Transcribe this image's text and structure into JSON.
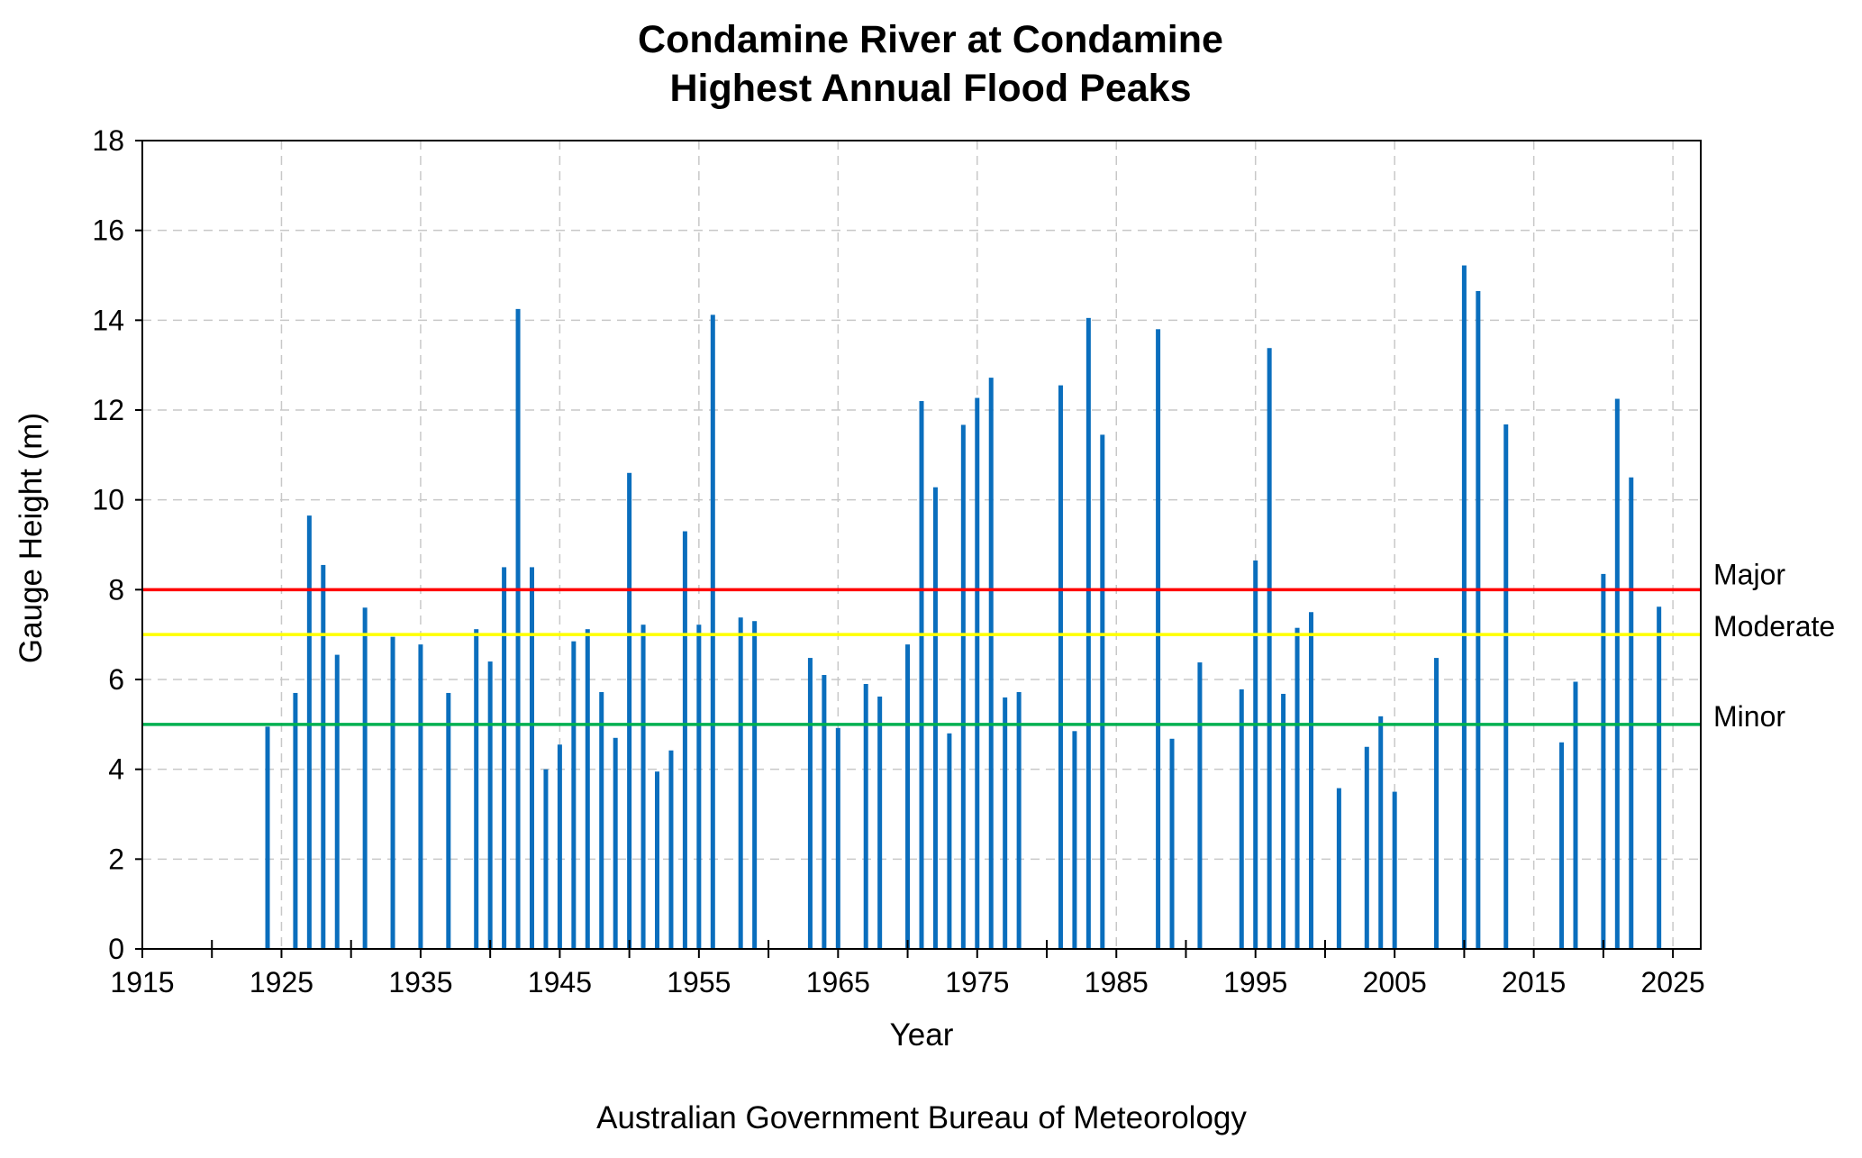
{
  "chart_data": {
    "type": "bar",
    "title": "Condamine River at Condamine",
    "subtitle": "Highest Annual Flood Peaks",
    "xlabel": "Year",
    "ylabel": "Gauge Height (m)",
    "xlim": [
      1915,
      2027
    ],
    "ylim": [
      0,
      18
    ],
    "x_ticks": [
      "1915",
      "1925",
      "1935",
      "1945",
      "1955",
      "1965",
      "1975",
      "1985",
      "1995",
      "2005",
      "2015",
      "2025"
    ],
    "y_ticks": [
      "0",
      "2",
      "4",
      "6",
      "8",
      "10",
      "12",
      "14",
      "16",
      "18"
    ],
    "grid": true,
    "series": [
      {
        "color": "#0a6ebd",
        "x": [
          1924,
          1926,
          1927,
          1928,
          1929,
          1931,
          1933,
          1935,
          1937,
          1939,
          1940,
          1941,
          1942,
          1943,
          1944,
          1945,
          1946,
          1947,
          1948,
          1949,
          1950,
          1951,
          1952,
          1953,
          1954,
          1955,
          1956,
          1958,
          1959,
          1963,
          1964,
          1965,
          1967,
          1968,
          1970,
          1971,
          1972,
          1973,
          1974,
          1975,
          1976,
          1977,
          1978,
          1981,
          1982,
          1983,
          1984,
          1988,
          1989,
          1991,
          1994,
          1995,
          1996,
          1997,
          1998,
          1999,
          2001,
          2003,
          2004,
          2005,
          2008,
          2010,
          2011,
          2013,
          2017,
          2018,
          2020,
          2021,
          2022,
          2024
        ],
        "values": [
          4.95,
          5.7,
          9.65,
          8.55,
          6.55,
          7.6,
          6.95,
          6.78,
          5.7,
          7.12,
          6.4,
          8.5,
          14.25,
          8.5,
          4.0,
          4.55,
          6.85,
          7.12,
          5.72,
          4.7,
          10.6,
          7.22,
          3.95,
          4.42,
          9.3,
          7.22,
          14.12,
          7.38,
          7.3,
          6.48,
          6.1,
          4.92,
          5.9,
          5.62,
          6.78,
          12.2,
          10.28,
          4.8,
          11.67,
          12.27,
          12.72,
          5.6,
          5.72,
          12.55,
          4.85,
          14.05,
          11.45,
          13.8,
          4.68,
          6.38,
          5.78,
          8.65,
          13.38,
          5.68,
          7.15,
          7.5,
          3.58,
          4.5,
          5.18,
          3.5,
          6.48,
          15.22,
          14.65,
          11.68,
          4.6,
          5.95,
          8.35,
          12.25,
          10.5,
          7.62
        ]
      }
    ],
    "reference_lines": [
      {
        "label": "Major",
        "value": 8,
        "color": "#ff0000"
      },
      {
        "label": "Moderate",
        "value": 7,
        "color": "#ffff00"
      },
      {
        "label": "Minor",
        "value": 5,
        "color": "#00b050"
      }
    ],
    "source": "Australian Government Bureau of Meteorology"
  }
}
